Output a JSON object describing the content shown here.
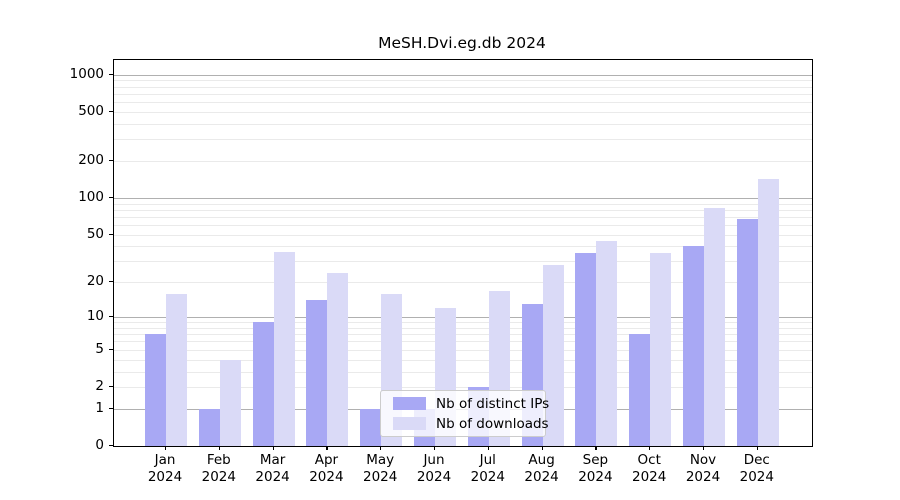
{
  "title": "MeSH.Dvi.eg.db 2024",
  "chart_data": {
    "type": "bar",
    "title": "MeSH.Dvi.eg.db 2024",
    "categories": [
      "Jan 2024",
      "Feb 2024",
      "Mar 2024",
      "Apr 2024",
      "May 2024",
      "Jun 2024",
      "Jul 2024",
      "Aug 2024",
      "Sep 2024",
      "Oct 2024",
      "Nov 2024",
      "Dec 2024"
    ],
    "series": [
      {
        "name": "Nb of distinct IPs",
        "color": "#a8a8f4",
        "values": [
          7,
          1,
          9,
          14,
          1,
          1,
          2,
          13,
          35,
          7,
          40,
          67
        ]
      },
      {
        "name": "Nb of downloads",
        "color": "#dadaf7",
        "values": [
          16,
          4,
          36,
          24,
          16,
          12,
          17,
          28,
          44,
          35,
          83,
          142
        ]
      }
    ],
    "xlabel": "",
    "ylabel": "",
    "y_axis": {
      "scale": "log1p",
      "tick_labels": [
        "0",
        "1",
        "2",
        "5",
        "10",
        "20",
        "50",
        "100",
        "200",
        "500",
        "1000"
      ],
      "tick_values": [
        0,
        1,
        2,
        5,
        10,
        20,
        50,
        100,
        200,
        500,
        1000
      ],
      "ylim": [
        0,
        1300
      ],
      "grid": true,
      "grid_major_color": "#b0b0b0",
      "grid_minor_color": "#eaeaea"
    },
    "legend": {
      "position": "lower center"
    }
  }
}
